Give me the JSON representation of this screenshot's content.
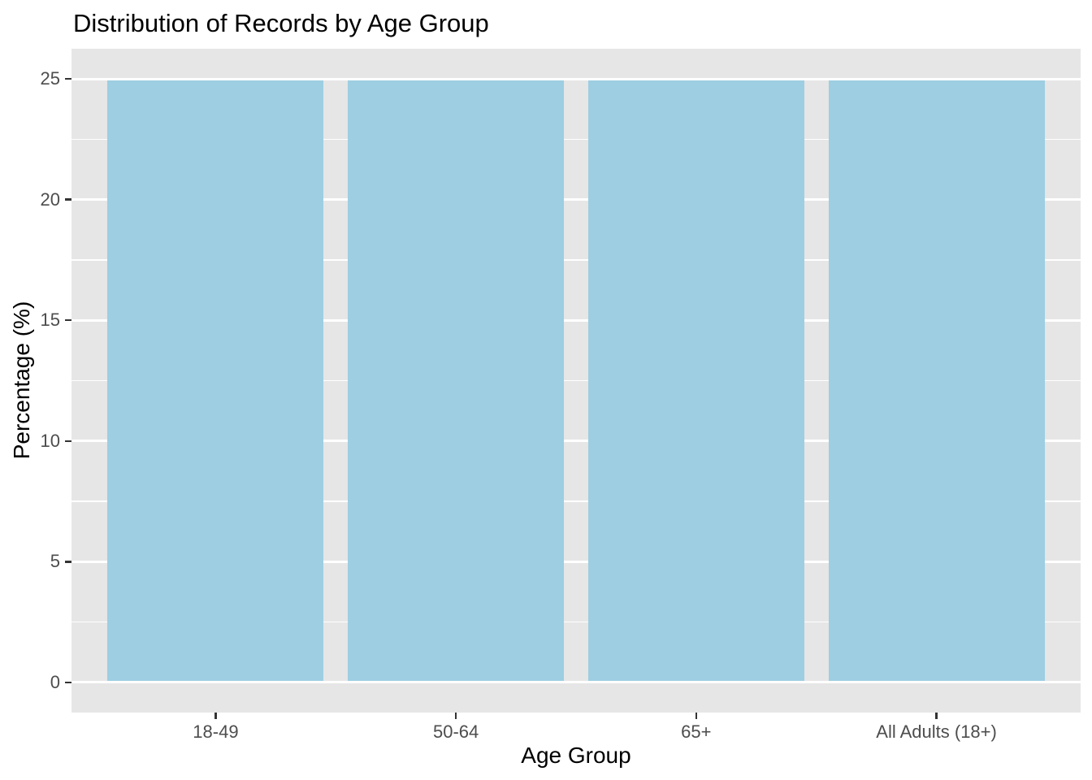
{
  "title": "Distribution of Records by Age Group",
  "chart_data": {
    "type": "bar",
    "title": "Distribution of Records by Age Group",
    "xlabel": "Age Group",
    "ylabel": "Percentage (%)",
    "categories": [
      "18-49",
      "50-64",
      "65+",
      "All Adults (18+)"
    ],
    "values": [
      25,
      25,
      25,
      25
    ],
    "ylim": [
      0,
      25
    ],
    "yticks": [
      0,
      5,
      10,
      15,
      20,
      25
    ],
    "yticks_minor": [
      2.5,
      7.5,
      12.5,
      17.5,
      22.5
    ],
    "grid": "white major and minor horizontal gridlines on grey panel",
    "legend": "none",
    "bar_width_fraction": 0.9,
    "colors": {
      "bar_fill": "#9DCEE2",
      "panel_bg": "#E6E6E6",
      "grid_major": "#FFFFFF",
      "grid_minor": "#FFFFFF",
      "tick_label": "#4D4D4D",
      "axis_title": "#000000",
      "title_text": "#000000",
      "tick_mark": "#333333",
      "figure_bg": "#FFFFFF"
    }
  }
}
